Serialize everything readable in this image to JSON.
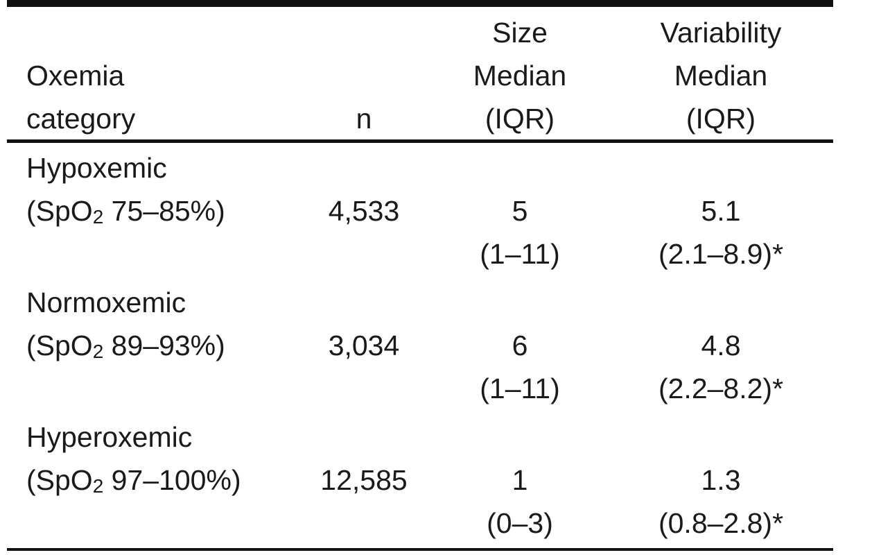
{
  "table": {
    "header": {
      "col1": [
        "Oxemia",
        "category"
      ],
      "col2": [
        "n"
      ],
      "col3": [
        "Size",
        "Median",
        "(IQR)"
      ],
      "col4": [
        "Variability",
        "Median",
        "(IQR)"
      ]
    },
    "rows": [
      {
        "label": "Hypoxemic",
        "range_prefix": "(SpO",
        "range_sub": "2",
        "range_suffix": " 75–85%)",
        "n": "4,533",
        "size_median": "5",
        "size_iqr": "(1–11)",
        "var_median": "5.1",
        "var_iqr": "(2.1–8.9)*"
      },
      {
        "label": "Normoxemic",
        "range_prefix": "(SpO",
        "range_sub": "2",
        "range_suffix": " 89–93%)",
        "n": "3,034",
        "size_median": "6",
        "size_iqr": "(1–11)",
        "var_median": "4.8",
        "var_iqr": "(2.2–8.2)*"
      },
      {
        "label": "Hyperoxemic",
        "range_prefix": "(SpO",
        "range_sub": "2",
        "range_suffix": " 97–100%)",
        "n": "12,585",
        "size_median": "1",
        "size_iqr": "(0–3)",
        "var_median": "1.3",
        "var_iqr": "(0.8–2.8)*"
      }
    ]
  }
}
